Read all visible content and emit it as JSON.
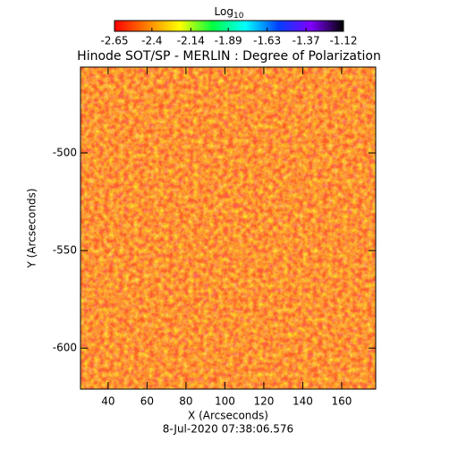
{
  "chart_data": {
    "type": "heatmap",
    "title": "Hinode SOT/SP - MERLIN : Degree of Polarization",
    "x_label": "X (Arcseconds)",
    "y_label": "Y (Arcseconds)",
    "date": "8-Jul-2020 07:38:06.576",
    "xlim": [
      25.8,
      177.5
    ],
    "xticks": [
      40,
      60,
      80,
      100,
      120,
      140,
      160
    ],
    "ylim": [
      -621,
      -456
    ],
    "yticks": [
      -500,
      -550,
      -600
    ],
    "colorbar": {
      "label": "Log",
      "label_sub": "10",
      "lim": [
        -2.65,
        -1.12
      ],
      "ticks": [
        -2.65,
        -2.4,
        {
          "value": -2.14,
          "label": "-2.14"
        },
        -1.89,
        -1.63,
        -1.37,
        -1.12
      ],
      "colors": [
        "#ff0000",
        "#ff8000",
        "#ffff00",
        "#00ff40",
        "#00ffff",
        "#0040ff",
        "#8000ff",
        "#000000"
      ]
    }
  }
}
